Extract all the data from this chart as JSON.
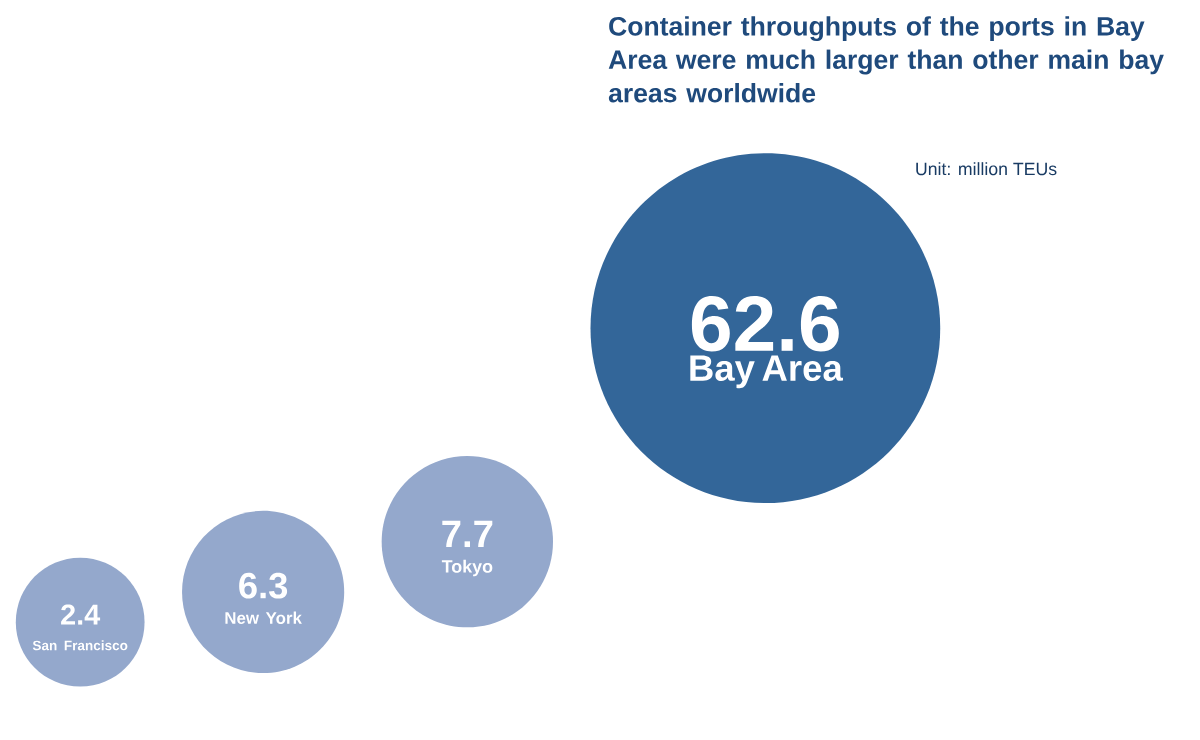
{
  "chart_data": {
    "type": "other",
    "title": "Container throughputs of the ports in Bay Area were much larger than other main bay areas worldwide",
    "annotations": [
      "Unit: million TEUs"
    ],
    "categories": [
      "San Francisco",
      "New York",
      "Tokyo",
      "Bay Area"
    ],
    "values": [
      2.4,
      6.3,
      7.7,
      62.6
    ],
    "colors": [
      "#94a8cc",
      "#94a8cc",
      "#94a8cc",
      "#336699"
    ],
    "data_labels": true
  }
}
